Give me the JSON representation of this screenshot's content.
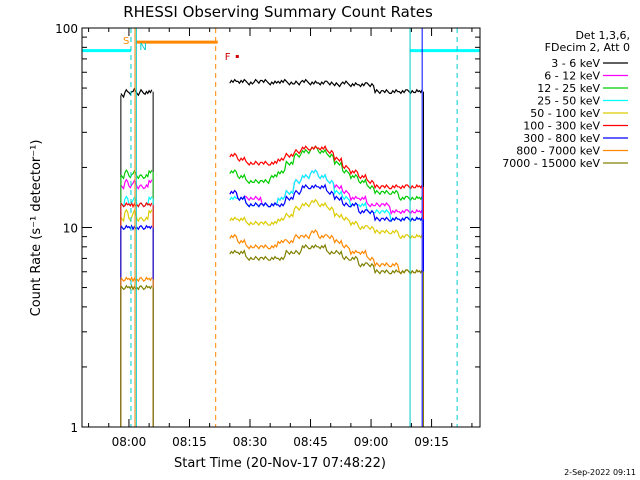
{
  "chart_data": {
    "type": "line",
    "title": "RHESSI Observing Summary Count Rates",
    "xlabel": "Start Time (20-Nov-17 07:48:22)",
    "ylabel": "Count Rate (s⁻¹ detector⁻¹)",
    "y_scale": "log",
    "ylim": [
      1,
      100
    ],
    "xlim": [
      "07:48:22",
      "09:27:00"
    ],
    "x_ticks": [
      "08:00",
      "08:15",
      "08:30",
      "08:45",
      "09:00",
      "09:15"
    ],
    "y_ticks": [
      "1",
      "10",
      "100"
    ],
    "legend_header": [
      "Det 1,3,6,",
      "FDecim 2, Att 0"
    ],
    "legend_position": "top-right, outside plot",
    "timestamp": "2-Sep-2022 09:11",
    "x": [
      "07:58",
      "07:59",
      "08:00",
      "08:01",
      "08:02",
      "08:03",
      "08:04",
      "08:05",
      "08:25",
      "08:27",
      "08:29",
      "08:31",
      "08:33",
      "08:35",
      "08:37",
      "08:39",
      "08:41",
      "08:43",
      "08:45",
      "08:47",
      "08:49",
      "08:51",
      "08:53",
      "08:55",
      "08:57",
      "08:59",
      "09:01",
      "09:03",
      "09:05",
      "09:07",
      "09:09",
      "09:11",
      "09:12"
    ],
    "series": [
      {
        "name": "3 - 6 keV",
        "color": "#000000",
        "values": [
          46,
          48,
          47,
          49,
          47,
          48,
          47,
          48,
          54,
          54,
          53,
          54,
          54,
          53,
          54,
          53,
          53,
          54,
          53,
          53,
          53,
          52,
          53,
          52,
          52,
          52,
          48,
          48,
          48,
          48,
          48,
          48,
          48
        ]
      },
      {
        "name": "6 - 12 keV",
        "color": "#ff00ff",
        "values": [
          16,
          17,
          16,
          17,
          16,
          16,
          16,
          17,
          15,
          14,
          14,
          14,
          13,
          13,
          14,
          15,
          17,
          18,
          19,
          18,
          17,
          16,
          15,
          14,
          14,
          13,
          13,
          13,
          12,
          12,
          12,
          12,
          12
        ]
      },
      {
        "name": "12 - 25 keV",
        "color": "#00cc00",
        "values": [
          18,
          19,
          18,
          19,
          18,
          18,
          18,
          19,
          19,
          18,
          17,
          17,
          17,
          18,
          19,
          21,
          23,
          24,
          25,
          24,
          23,
          21,
          19,
          18,
          17,
          16,
          15,
          15,
          15,
          14,
          14,
          14,
          14
        ]
      },
      {
        "name": "25 - 50 keV",
        "color": "#00ffff",
        "values": [
          13,
          14,
          13,
          14,
          13,
          13,
          13,
          14,
          14,
          14,
          13,
          13,
          13,
          13,
          14,
          15,
          17,
          18,
          19,
          18,
          17,
          15,
          14,
          13,
          13,
          12,
          12,
          12,
          11,
          11,
          11,
          11,
          11
        ]
      },
      {
        "name": "50 - 100 keV",
        "color": "#ddcc00",
        "values": [
          11,
          12,
          11,
          12,
          11,
          11,
          11,
          12,
          11,
          11,
          10.5,
          10.5,
          10.5,
          10.5,
          11,
          11.5,
          12.5,
          13,
          13.5,
          13,
          12.5,
          11.5,
          11,
          10.5,
          10,
          10,
          9.5,
          9.5,
          9.5,
          9,
          9,
          9,
          9
        ]
      },
      {
        "name": "100 - 300 keV",
        "color": "#ff0000",
        "values": [
          13,
          13,
          13,
          13,
          13,
          13,
          13,
          13,
          23,
          22,
          21,
          21,
          21,
          21,
          22,
          23,
          24,
          25,
          25,
          25,
          24,
          22,
          20,
          19,
          18,
          17,
          16,
          16,
          16,
          16,
          16,
          16,
          16
        ]
      },
      {
        "name": "300 - 800 keV",
        "color": "#0000ff",
        "values": [
          10,
          10,
          10,
          10,
          10,
          10,
          10,
          10,
          15,
          14,
          13,
          13,
          13,
          13,
          13,
          14,
          15,
          16,
          16,
          16,
          15,
          14,
          13,
          13,
          12,
          12,
          11,
          11,
          11,
          11,
          11,
          11,
          11
        ]
      },
      {
        "name": "800 - 7000 keV",
        "color": "#ff8800",
        "values": [
          5.5,
          5.5,
          5.5,
          5.5,
          5.5,
          5.5,
          5.5,
          5.5,
          9,
          8.5,
          8,
          8,
          8,
          8,
          8.5,
          8.5,
          9,
          9,
          9.5,
          9,
          9,
          8.5,
          8,
          7.5,
          7.5,
          7,
          6.5,
          6.5,
          6.5,
          6,
          6,
          6,
          6
        ]
      },
      {
        "name": "7000 - 15000 keV",
        "color": "#808000",
        "values": [
          5,
          5,
          5,
          5,
          5,
          5,
          5,
          5,
          7.5,
          7.5,
          7,
          7,
          7,
          7,
          7,
          7.5,
          7.5,
          8,
          8,
          8,
          7.5,
          7.5,
          7,
          7,
          6.5,
          6.5,
          6,
          6,
          6,
          6,
          6,
          6,
          6
        ]
      }
    ],
    "annotations": [
      {
        "label": "S",
        "time": "08:01:30",
        "color": "#ff8800",
        "style": "solid"
      },
      {
        "label": "N",
        "time": "08:01:50",
        "color": "#00cccc",
        "style": "solid"
      },
      {
        "label": "F",
        "time": "08:23:30",
        "color": "#cc0000",
        "style": "marker"
      },
      {
        "label": "",
        "time": "08:21:30",
        "color": "#ff8800",
        "style": "dashed"
      },
      {
        "label": "",
        "time": "08:00:30",
        "color": "#00cccc",
        "style": "dashed"
      },
      {
        "label": "",
        "time": "09:09:40",
        "color": "#00cccc",
        "style": "solid"
      },
      {
        "label": "",
        "time": "09:12:40",
        "color": "#0000ff",
        "style": "solid"
      },
      {
        "label": "",
        "time": "09:21:20",
        "color": "#00cccc",
        "style": "dashed"
      }
    ],
    "bars": [
      {
        "name": "SAA (orange)",
        "start": "08:01:50",
        "end": "08:22:00",
        "color": "#ff8800",
        "level": 85
      },
      {
        "name": "Night (cyan)",
        "start": "07:48:22",
        "end": "08:00:30",
        "color": "#00ffff",
        "level": 77
      },
      {
        "name": "Night (cyan)",
        "start": "09:09:40",
        "end": "09:27:00",
        "color": "#00ffff",
        "level": 77
      }
    ]
  }
}
